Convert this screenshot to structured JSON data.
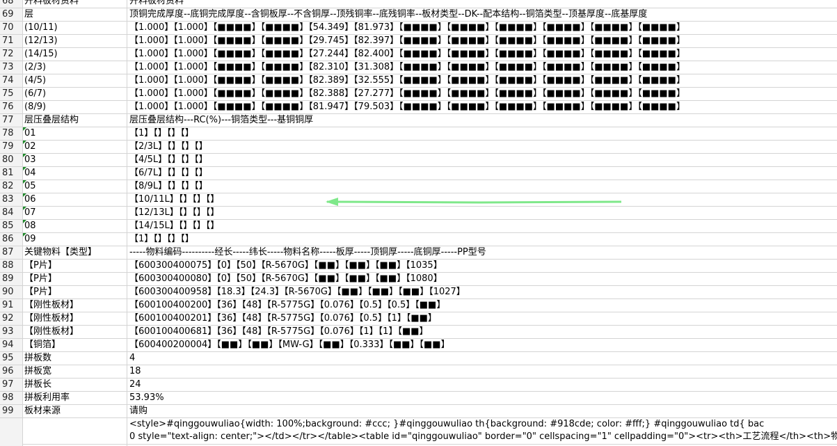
{
  "sheet": {
    "rows": [
      {
        "num": "68",
        "label": "开料板材资料",
        "value": "开料板材资料"
      },
      {
        "num": "69",
        "label": "层",
        "value": "顶铜完成厚度--底铜完成厚度--含铜板厚--不含铜厚--顶残铜率--底残铜率--板材类型--DK--配本结构--铜箔类型--顶基厚度--底基厚度"
      },
      {
        "num": "70",
        "label": "(10/11)",
        "value": "【1.000】【1.000】【■■■■】【■■■■】【54.349】【81.973】【■■■■】【■■■■】【■■■■】【■■■■】【■■■■】【■■■■】"
      },
      {
        "num": "71",
        "label": "(12/13)",
        "value": "【1.000】【1.000】【■■■■】【■■■■】【29.745】【82.397】【■■■■】【■■■■】【■■■■】【■■■■】【■■■■】【■■■■】"
      },
      {
        "num": "72",
        "label": "(14/15)",
        "value": "【1.000】【1.000】【■■■■】【■■■■】【27.244】【82.400】【■■■■】【■■■■】【■■■■】【■■■■】【■■■■】【■■■■】"
      },
      {
        "num": "73",
        "label": "(2/3)",
        "value": "【1.000】【1.000】【■■■■】【■■■■】【82.310】【31.308】【■■■■】【■■■■】【■■■■】【■■■■】【■■■■】【■■■■】"
      },
      {
        "num": "74",
        "label": "(4/5)",
        "value": "【1.000】【1.000】【■■■■】【■■■■】【82.389】【32.555】【■■■■】【■■■■】【■■■■】【■■■■】【■■■■】【■■■■】"
      },
      {
        "num": "75",
        "label": "(6/7)",
        "value": "【1.000】【1.000】【■■■■】【■■■■】【82.388】【27.277】【■■■■】【■■■■】【■■■■】【■■■■】【■■■■】【■■■■】"
      },
      {
        "num": "76",
        "label": "(8/9)",
        "value": "【1.000】【1.000】【■■■■】【■■■■】【81.947】【79.503】【■■■■】【■■■■】【■■■■】【■■■■】【■■■■】【■■■■】"
      },
      {
        "num": "77",
        "label": "层压叠层结构",
        "value": "层压叠层结构---RC(%)---铜箔类型---基铜铜厚"
      },
      {
        "num": "78",
        "label": "01",
        "value": "【1】【】【】【】"
      },
      {
        "num": "79",
        "label": "02",
        "value": "【2/3L】【】【】【】"
      },
      {
        "num": "80",
        "label": "03",
        "value": "【4/5L】【】【】【】"
      },
      {
        "num": "81",
        "label": "04",
        "value": "【6/7L】【】【】【】"
      },
      {
        "num": "82",
        "label": "05",
        "value": "【8/9L】【】【】【】"
      },
      {
        "num": "83",
        "label": "06",
        "value": "【10/11L】【】【】【】"
      },
      {
        "num": "84",
        "label": "07",
        "value": "【12/13L】【】【】【】"
      },
      {
        "num": "85",
        "label": "08",
        "value": "【14/15L】【】【】【】"
      },
      {
        "num": "86",
        "label": "09",
        "value": "【1】【】【】【】"
      },
      {
        "num": "87",
        "label": "关键物料【类型】",
        "value": "-----物料编码----------经长-----纬长-----物料名称-----板厚-----顶铜厚-----底铜厚-----PP型号"
      },
      {
        "num": "88",
        "label": "【P片】",
        "value": "【600300400075】【0】【50】【R-5670G】【■■】【■■】【■■】【1035】"
      },
      {
        "num": "89",
        "label": "【P片】",
        "value": "【600300400080】【0】【50】【R-5670G】【■■】【■■】【■■】【1080】"
      },
      {
        "num": "90",
        "label": "【P片】",
        "value": "【600300400958】【18.3】【24.3】【R-5670G】【■■】【■■】【■■】【1027】"
      },
      {
        "num": "91",
        "label": "【刚性板材】",
        "value": "【600100400200】【36】【48】【R-5775G】【0.076】【0.5】【0.5】【■■】"
      },
      {
        "num": "92",
        "label": "【刚性板材】",
        "value": "【600100400201】【36】【48】【R-5775G】【0.076】【0.5】【1】【■■】"
      },
      {
        "num": "93",
        "label": "【刚性板材】",
        "value": "【600100400681】【36】【48】【R-5775G】【0.076】【1】【1】【■■】"
      },
      {
        "num": "94",
        "label": "【铜箔】",
        "value": "【600400200004】【■■】【■■】【MW-G】【■■】【0.333】【■■】【■■】"
      },
      {
        "num": "95",
        "label": "拼板数",
        "value": "4"
      },
      {
        "num": "96",
        "label": "拼板宽",
        "value": "18"
      },
      {
        "num": "97",
        "label": "拼板长",
        "value": "24"
      },
      {
        "num": "98",
        "label": "拼板利用率",
        "value": "53.93%"
      },
      {
        "num": "99",
        "label": "板材来源",
        "value": "请购"
      }
    ],
    "style_row": [
      "<style>#qinggouwuliao{width: 100%;background: #ccc; }#qinggouwuliao th{background: #918cde; color: #fff;} #qinggouwuliao td{ bac",
      "0 style=\"text-align: center;\"></td></tr></table><table id=\"qinggouwuliao\" border=\"0\" cellspacing=\"1\" cellpadding=\"0\"><tr><th>工艺流程</th><th>物料"
    ]
  }
}
